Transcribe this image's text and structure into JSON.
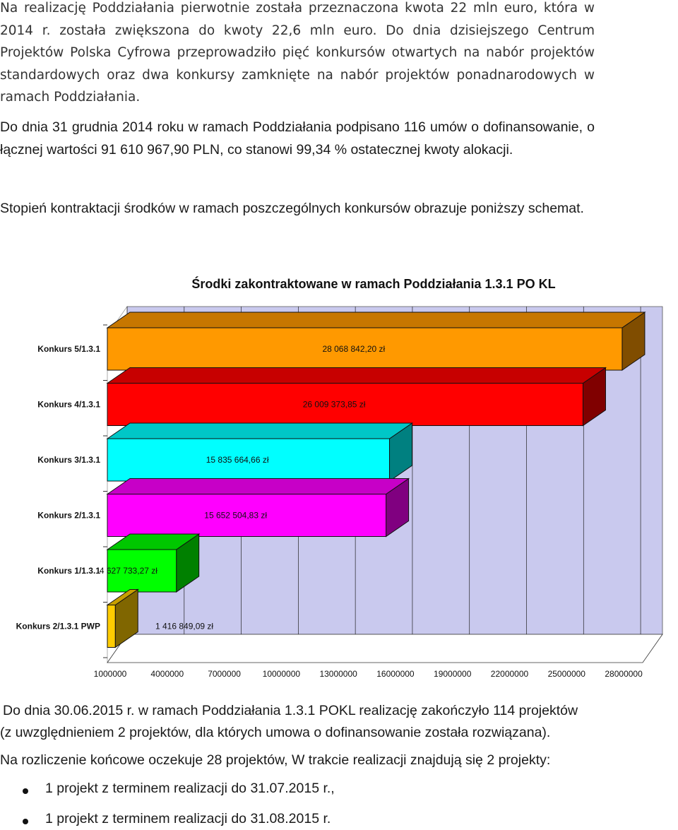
{
  "paragraphs": {
    "p1": "Na realizację Poddziałania pierwotnie została przeznaczona kwota 22 mln euro, która w 2014 r. została zwiększona do kwoty 22,6 mln euro. Do dnia dzisiejszego Centrum Projektów Polska Cyfrowa przeprowadziło pięć konkursów otwartych na nabór projektów standardowych oraz dwa konkursy zamknięte na nabór projektów ponadnarodowych w ramach Poddziałania.",
    "p2": "Do dnia 31 grudnia 2014 roku w ramach Poddziałania podpisano 116 umów o dofinansowanie, o łącznej wartości 91 610 967,90 PLN, co stanowi 99,34 % ostatecznej kwoty alokacji.",
    "p3": "Stopień kontraktacji środków w ramach poszczególnych konkursów obrazuje poniższy schemat.",
    "p4_line1": "Do dnia 30.06.2015 r. w ramach Poddziałania 1.3.1 POKL realizację zakończyło 114 projektów",
    "p4_line2": "(z uwzględnieniem 2 projektów, dla których umowa o dofinansowanie została rozwiązana).",
    "p5": "Na rozliczenie końcowe oczekuje 28 projektów, W trakcie realizacji znajdują się 2 projekty:"
  },
  "bullets": [
    "1 projekt z terminem realizacji do 31.07.2015 r.,",
    "1 projekt z terminem realizacji do 31.08.2015 r."
  ],
  "chart_data": {
    "type": "bar",
    "orientation": "horizontal",
    "style": "3d",
    "title": "Środki zakontraktowane w ramach Poddziałania 1.3.1 PO KL",
    "xlabel": "",
    "ylabel": "",
    "xlim": [
      1000000,
      29000000
    ],
    "x_ticks": [
      1000000,
      4000000,
      7000000,
      10000000,
      13000000,
      16000000,
      19000000,
      22000000,
      25000000,
      28000000
    ],
    "x_tick_labels": [
      "1000000",
      "4000000",
      "7000000",
      "10000000",
      "13000000",
      "16000000",
      "19000000",
      "22000000",
      "25000000",
      "28000000"
    ],
    "grid": true,
    "legend": "none",
    "categories": [
      "Konkurs 5/1.3.1",
      "Konkurs 4/1.3.1",
      "Konkurs 3/1.3.1",
      "Konkurs 2/1.3.1",
      "Konkurs 1/1.3.1",
      "Konkurs 2/1.3.1 PWP"
    ],
    "values": [
      28068842.2,
      26009373.85,
      15835664.66,
      15652504.83,
      4627733.27,
      1416849.09
    ],
    "value_labels": [
      "28 068 842,20 zł",
      "26 009 373,85 zł",
      "15 835 664,66 zł",
      "15 652 504,83 zł",
      "4 627 733,27 zł",
      "1 416 849,09 zł"
    ],
    "colors": [
      "#ff9900",
      "#ff0000",
      "#00ffff",
      "#ff00ff",
      "#00ff00",
      "#ffcc00"
    ],
    "wall_color": "#c9c9ee"
  }
}
